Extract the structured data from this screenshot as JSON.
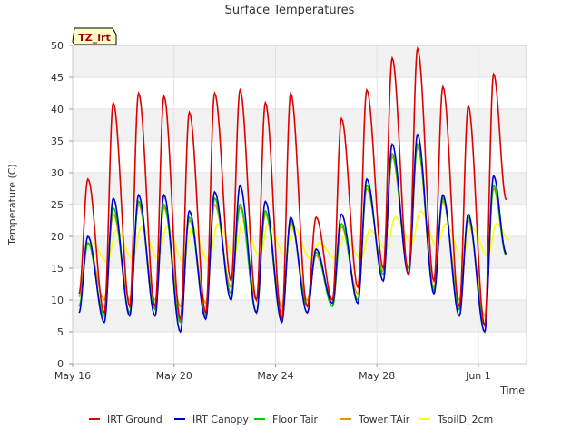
{
  "chart_data": {
    "type": "line",
    "title": "Surface Temperatures",
    "xlabel": "Time",
    "ylabel": "Temperature (C)",
    "ylim": [
      0,
      50
    ],
    "xlim": [
      0,
      17.9
    ],
    "x_units": "days since May 16",
    "y_ticks": [
      0,
      5,
      10,
      15,
      20,
      25,
      30,
      35,
      40,
      45,
      50
    ],
    "x_ticks": [
      {
        "value": 0,
        "label": "May 16"
      },
      {
        "value": 4,
        "label": "May 20"
      },
      {
        "value": 8,
        "label": "May 24"
      },
      {
        "value": 12,
        "label": "May 28"
      },
      {
        "value": 16,
        "label": "Jun 1"
      }
    ],
    "grid": "horizontal bands",
    "legend_position": "bottom",
    "annotation": "TZ_irt",
    "daily_extremes": {
      "days": [
        0.5,
        1.5,
        2.5,
        3.5,
        4.5,
        5.5,
        6.5,
        7.5,
        8.5,
        9.5,
        10.5,
        11.5,
        12.5,
        13.5,
        14.5,
        15.5,
        16.5
      ],
      "series": [
        {
          "name": "IRT Ground",
          "color": "#dd0000",
          "peaks": [
            29,
            41,
            42.5,
            42,
            39.5,
            42.5,
            43,
            41,
            42.5,
            23,
            38.5,
            43,
            48,
            49.5,
            43.5,
            40.5,
            45.5
          ],
          "troughs": [
            11,
            8,
            9,
            9,
            7,
            8,
            13,
            10,
            7,
            9,
            10,
            12,
            15,
            14,
            13,
            9,
            6
          ]
        },
        {
          "name": "IRT Canopy",
          "color": "#0000cc",
          "peaks": [
            20,
            26,
            26.5,
            26.5,
            24,
            27,
            28,
            25.5,
            23,
            18,
            23.5,
            29,
            34.5,
            36,
            26.5,
            23.5,
            29.5
          ],
          "troughs": [
            8,
            6.5,
            7.5,
            7.5,
            5,
            7,
            10,
            8,
            6.5,
            8,
            9.5,
            9.5,
            13,
            14,
            11,
            7.5,
            5
          ]
        },
        {
          "name": "Floor Tair",
          "color": "#00cc00",
          "peaks": [
            19,
            24.5,
            25.5,
            25,
            23,
            26,
            25,
            24,
            22.5,
            17.5,
            22,
            28,
            33,
            34.5,
            26,
            23,
            28
          ],
          "troughs": [
            9,
            7.5,
            8,
            8.5,
            6.5,
            7.5,
            11,
            8,
            7,
            9,
            9,
            10,
            14,
            15,
            11.5,
            8.5,
            6
          ]
        },
        {
          "name": "Tower TAir",
          "color": "#e69500",
          "peaks": [
            19,
            23.5,
            25,
            24.5,
            22.5,
            25,
            24.5,
            23.5,
            22,
            17,
            21.5,
            27.5,
            32.5,
            34,
            25.5,
            22.5,
            27.5
          ],
          "troughs": [
            10.5,
            10,
            10,
            10,
            9,
            9.5,
            12,
            10,
            9,
            10,
            10,
            11,
            14.5,
            15,
            12,
            10,
            7.5
          ]
        },
        {
          "name": "TsoilD_2cm",
          "color": "#ffff00",
          "peaks": [
            19,
            21,
            21.5,
            21.5,
            21.5,
            22,
            22.5,
            22,
            21.5,
            19,
            20,
            21,
            23,
            24,
            22,
            21.5,
            22
          ],
          "troughs": [
            17,
            16,
            16.5,
            16.5,
            16,
            16,
            17,
            17,
            17,
            16.5,
            16.5,
            16.5,
            18,
            19,
            18.5,
            16.5,
            17
          ]
        }
      ]
    }
  }
}
